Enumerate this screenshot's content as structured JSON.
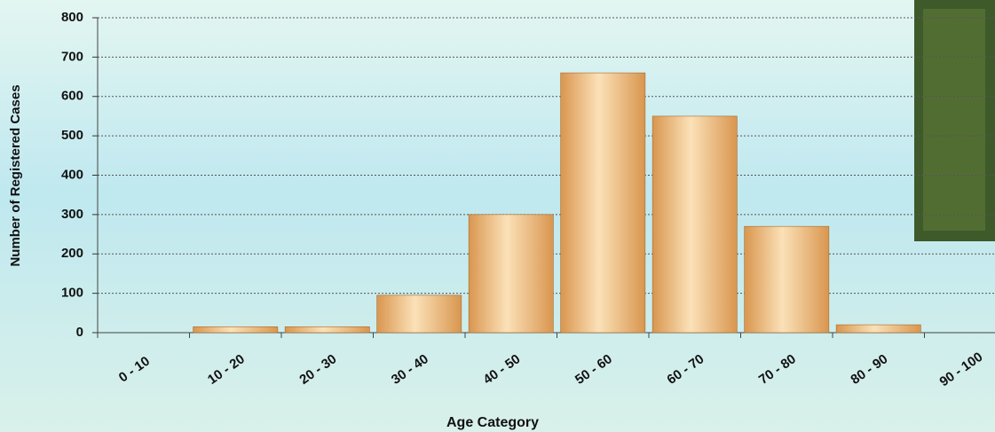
{
  "chart_data": {
    "type": "bar",
    "x_label": "Age Category",
    "y_label": "Number of Registered Cases",
    "categories": [
      "0 - 10",
      "10 - 20",
      "20 - 30",
      "30 - 40",
      "40 - 50",
      "50 - 60",
      "60 - 70",
      "70 - 80",
      "80 - 90",
      "90 - 100"
    ],
    "values": [
      0,
      15,
      15,
      95,
      300,
      660,
      550,
      270,
      20,
      0
    ],
    "color": "#d9964f",
    "ylim": [
      0,
      800
    ],
    "yticks": [
      0,
      100,
      200,
      300,
      400,
      500,
      600,
      700,
      800
    ],
    "grid": true
  }
}
